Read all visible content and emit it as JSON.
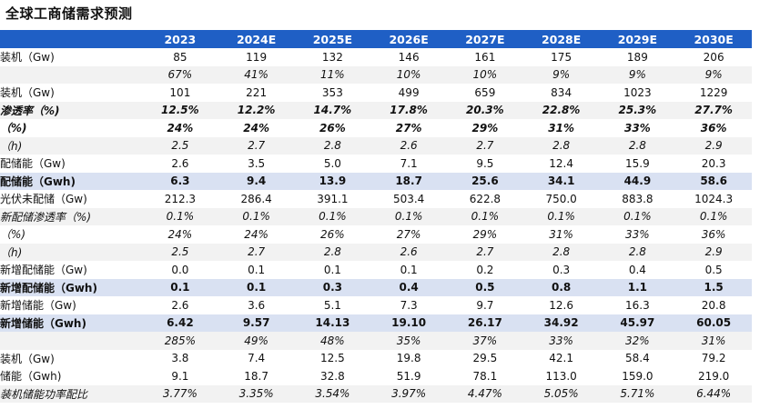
{
  "title": "全球工商储需求预测",
  "headers": [
    "",
    "2023",
    "2024E",
    "2025E",
    "2026E",
    "2027E",
    "2028E",
    "2029E",
    "2030E"
  ],
  "rows": [
    {
      "style": "",
      "cells": [
        "装机（Gw)",
        "85",
        "119",
        "132",
        "146",
        "161",
        "175",
        "189",
        "206"
      ]
    },
    {
      "style": "ital shade",
      "cells": [
        "",
        "67%",
        "41%",
        "11%",
        "10%",
        "10%",
        "9%",
        "9%",
        "9%"
      ]
    },
    {
      "style": "",
      "cells": [
        "装机（Gw)",
        "101",
        "221",
        "353",
        "499",
        "659",
        "834",
        "1023",
        "1229"
      ]
    },
    {
      "style": "ital bold shade",
      "cells": [
        "渗透率（%)",
        "12.5%",
        "12.2%",
        "14.7%",
        "17.8%",
        "20.3%",
        "22.8%",
        "25.3%",
        "27.7%"
      ]
    },
    {
      "style": "ital bold",
      "cells": [
        "（%)",
        "24%",
        "24%",
        "26%",
        "27%",
        "29%",
        "31%",
        "33%",
        "36%"
      ]
    },
    {
      "style": "ital shade",
      "cells": [
        "（h)",
        "2.5",
        "2.7",
        "2.8",
        "2.6",
        "2.7",
        "2.8",
        "2.8",
        "2.9"
      ]
    },
    {
      "style": "",
      "cells": [
        "配储能（Gw)",
        "2.6",
        "3.5",
        "5.0",
        "7.1",
        "9.5",
        "12.4",
        "15.9",
        "20.3"
      ]
    },
    {
      "style": "bold band",
      "cells": [
        "配储能（Gwh)",
        "6.3",
        "9.4",
        "13.9",
        "18.7",
        "25.6",
        "34.1",
        "44.9",
        "58.6"
      ]
    },
    {
      "style": "",
      "cells": [
        "光伏未配储（Gw)",
        "212.3",
        "286.4",
        "391.1",
        "503.4",
        "622.8",
        "750.0",
        "883.8",
        "1024.3"
      ]
    },
    {
      "style": "ital shade",
      "cells": [
        "新配储渗透率（%)",
        "0.1%",
        "0.1%",
        "0.1%",
        "0.1%",
        "0.1%",
        "0.1%",
        "0.1%",
        "0.1%"
      ]
    },
    {
      "style": "ital",
      "cells": [
        "（%)",
        "24%",
        "24%",
        "26%",
        "27%",
        "29%",
        "31%",
        "33%",
        "36%"
      ]
    },
    {
      "style": "ital shade",
      "cells": [
        "（h)",
        "2.5",
        "2.7",
        "2.8",
        "2.6",
        "2.7",
        "2.8",
        "2.8",
        "2.9"
      ]
    },
    {
      "style": "",
      "cells": [
        "新增配储能（Gw)",
        "0.0",
        "0.1",
        "0.1",
        "0.1",
        "0.2",
        "0.3",
        "0.4",
        "0.5"
      ]
    },
    {
      "style": "bold band",
      "cells": [
        "新增配储能（Gwh)",
        "0.1",
        "0.1",
        "0.3",
        "0.4",
        "0.5",
        "0.8",
        "1.1",
        "1.5"
      ]
    },
    {
      "style": "",
      "cells": [
        "新增储能（Gw)",
        "2.6",
        "3.6",
        "5.1",
        "7.3",
        "9.7",
        "12.6",
        "16.3",
        "20.8"
      ]
    },
    {
      "style": "bold band",
      "cells": [
        "新增储能（Gwh)",
        "6.42",
        "9.57",
        "14.13",
        "19.10",
        "26.17",
        "34.92",
        "45.97",
        "60.05"
      ]
    },
    {
      "style": "ital shade",
      "cells": [
        "",
        "285%",
        "49%",
        "48%",
        "35%",
        "37%",
        "33%",
        "32%",
        "31%"
      ]
    },
    {
      "style": "",
      "cells": [
        "装机（Gw)",
        "3.8",
        "7.4",
        "12.5",
        "19.8",
        "29.5",
        "42.1",
        "58.4",
        "79.2"
      ]
    },
    {
      "style": "",
      "cells": [
        "储能（Gwh)",
        "9.1",
        "18.7",
        "32.8",
        "51.9",
        "78.1",
        "113.0",
        "159.0",
        "219.0"
      ]
    },
    {
      "style": "ital shade",
      "cells": [
        "装机储能功率配比",
        "3.77%",
        "3.35%",
        "3.54%",
        "3.97%",
        "4.47%",
        "5.05%",
        "5.71%",
        "6.44%"
      ]
    }
  ]
}
